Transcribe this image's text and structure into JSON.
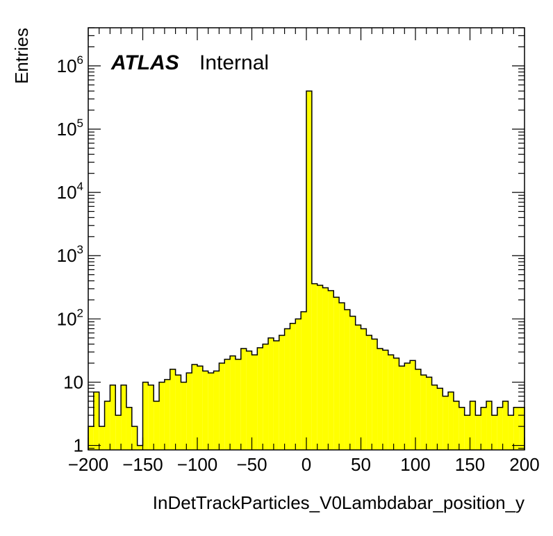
{
  "chart_data": {
    "type": "histogram",
    "title": "",
    "xlabel": "InDetTrackParticles_V0Lambdabar_position_y",
    "ylabel": "Entries",
    "xlim": [
      -200,
      200
    ],
    "ylim": [
      0.85,
      4000000
    ],
    "yscale": "log",
    "bin_width": 5,
    "fill_color": "#ffff00",
    "line_color": "#000000",
    "grid": false,
    "legend": "none",
    "x_tick_labels": [
      "−200",
      "−150",
      "−100",
      "−50",
      "0",
      "50",
      "100",
      "150",
      "200"
    ],
    "x_ticks": [
      -200,
      -150,
      -100,
      -50,
      0,
      50,
      100,
      150,
      200
    ],
    "y_ticks": [
      1,
      10,
      100,
      1000,
      10000,
      100000,
      1000000
    ],
    "y_tick_labels": [
      {
        "base": "1",
        "exp": ""
      },
      {
        "base": "10",
        "exp": ""
      },
      {
        "base": "10",
        "exp": "2"
      },
      {
        "base": "10",
        "exp": "3"
      },
      {
        "base": "10",
        "exp": "4"
      },
      {
        "base": "10",
        "exp": "5"
      },
      {
        "base": "10",
        "exp": "6"
      }
    ],
    "annotation": {
      "label": "ATLAS",
      "status": "Internal"
    },
    "bins": [
      [
        -200,
        2
      ],
      [
        -195,
        7
      ],
      [
        -190,
        2
      ],
      [
        -185,
        5
      ],
      [
        -180,
        9
      ],
      [
        -175,
        3
      ],
      [
        -170,
        9
      ],
      [
        -165,
        4
      ],
      [
        -160,
        2
      ],
      [
        -155,
        1
      ],
      [
        -150,
        10
      ],
      [
        -145,
        9
      ],
      [
        -140,
        5
      ],
      [
        -135,
        10
      ],
      [
        -130,
        11
      ],
      [
        -125,
        16
      ],
      [
        -120,
        13
      ],
      [
        -115,
        10
      ],
      [
        -110,
        14
      ],
      [
        -105,
        19
      ],
      [
        -100,
        18
      ],
      [
        -95,
        15
      ],
      [
        -90,
        14
      ],
      [
        -85,
        15
      ],
      [
        -80,
        20
      ],
      [
        -75,
        23
      ],
      [
        -70,
        26
      ],
      [
        -65,
        23
      ],
      [
        -60,
        34
      ],
      [
        -55,
        31
      ],
      [
        -50,
        27
      ],
      [
        -45,
        35
      ],
      [
        -40,
        40
      ],
      [
        -35,
        50
      ],
      [
        -30,
        45
      ],
      [
        -25,
        55
      ],
      [
        -20,
        70
      ],
      [
        -15,
        85
      ],
      [
        -10,
        100
      ],
      [
        -5,
        130
      ],
      [
        0,
        400000
      ],
      [
        5,
        360
      ],
      [
        10,
        340
      ],
      [
        15,
        310
      ],
      [
        20,
        280
      ],
      [
        25,
        220
      ],
      [
        30,
        180
      ],
      [
        35,
        140
      ],
      [
        40,
        110
      ],
      [
        45,
        80
      ],
      [
        50,
        70
      ],
      [
        55,
        55
      ],
      [
        60,
        48
      ],
      [
        65,
        34
      ],
      [
        70,
        32
      ],
      [
        75,
        27
      ],
      [
        80,
        24
      ],
      [
        85,
        18
      ],
      [
        90,
        20
      ],
      [
        95,
        22
      ],
      [
        100,
        16
      ],
      [
        105,
        13
      ],
      [
        110,
        12
      ],
      [
        115,
        9
      ],
      [
        120,
        8
      ],
      [
        125,
        6
      ],
      [
        130,
        7
      ],
      [
        135,
        5
      ],
      [
        140,
        4
      ],
      [
        145,
        3
      ],
      [
        150,
        5
      ],
      [
        155,
        3
      ],
      [
        160,
        4
      ],
      [
        165,
        5
      ],
      [
        170,
        3
      ],
      [
        175,
        4
      ],
      [
        180,
        5
      ],
      [
        185,
        3
      ],
      [
        190,
        4
      ],
      [
        195,
        4
      ]
    ],
    "bins_note_free": true
  }
}
